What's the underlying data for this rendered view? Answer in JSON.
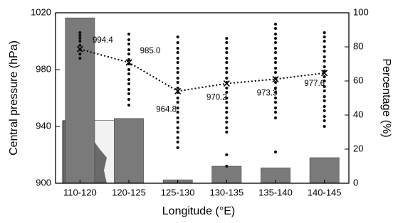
{
  "chart_data": {
    "type": "bar",
    "xlabel": "Longitude (°E)",
    "ylabel": "Central pressure (hPa)",
    "y2label": "Percentage (%)",
    "categories": [
      "110-120",
      "120-125",
      "125-130",
      "130-135",
      "135-140",
      "140-145"
    ],
    "ylim": [
      900,
      1020
    ],
    "yticks": [
      900,
      940,
      980,
      1020
    ],
    "y2lim": [
      0,
      100
    ],
    "y2ticks": [
      0,
      20,
      40,
      60,
      80,
      100
    ],
    "series": [
      {
        "type": "bar",
        "axis": "y2",
        "color": "#7a7a7a",
        "values": [
          97,
          38,
          2,
          10,
          9,
          15
        ]
      },
      {
        "type": "scatter",
        "color": "#111111",
        "values": [
          [
            988,
            991,
            994,
            997,
            1000,
            1002,
            1004,
            1006
          ],
          [
            955,
            959,
            963,
            966,
            970,
            973,
            977,
            980,
            984,
            987,
            991,
            994,
            998,
            1001,
            1005
          ],
          [
            925,
            929,
            932,
            936,
            939,
            943,
            946,
            950,
            953,
            957,
            960,
            964,
            967,
            971,
            974,
            978,
            981,
            985,
            988,
            992,
            995,
            999,
            1003
          ],
          [
            912,
            920,
            936,
            939,
            943,
            946,
            950,
            953,
            957,
            960,
            964,
            967,
            971,
            974,
            978,
            981,
            985,
            988,
            992,
            995,
            999,
            1002
          ],
          [
            922,
            946,
            950,
            953,
            957,
            960,
            964,
            967,
            971,
            974,
            978,
            981,
            985,
            988,
            992,
            995,
            999,
            1002,
            1005,
            1009,
            1012
          ],
          [
            940,
            944,
            947,
            951,
            954,
            958,
            961,
            965,
            968,
            972,
            975,
            979,
            982,
            986,
            989,
            993,
            996,
            1000,
            1003,
            1006
          ]
        ]
      },
      {
        "type": "line",
        "color": "#000000",
        "values": [
          994.4,
          985.0,
          964.8,
          970.2,
          973.3,
          977.6
        ],
        "value_labels": [
          "994.4",
          "985.0",
          "964.8",
          "970.2",
          "973.3",
          "977.6"
        ]
      }
    ]
  }
}
